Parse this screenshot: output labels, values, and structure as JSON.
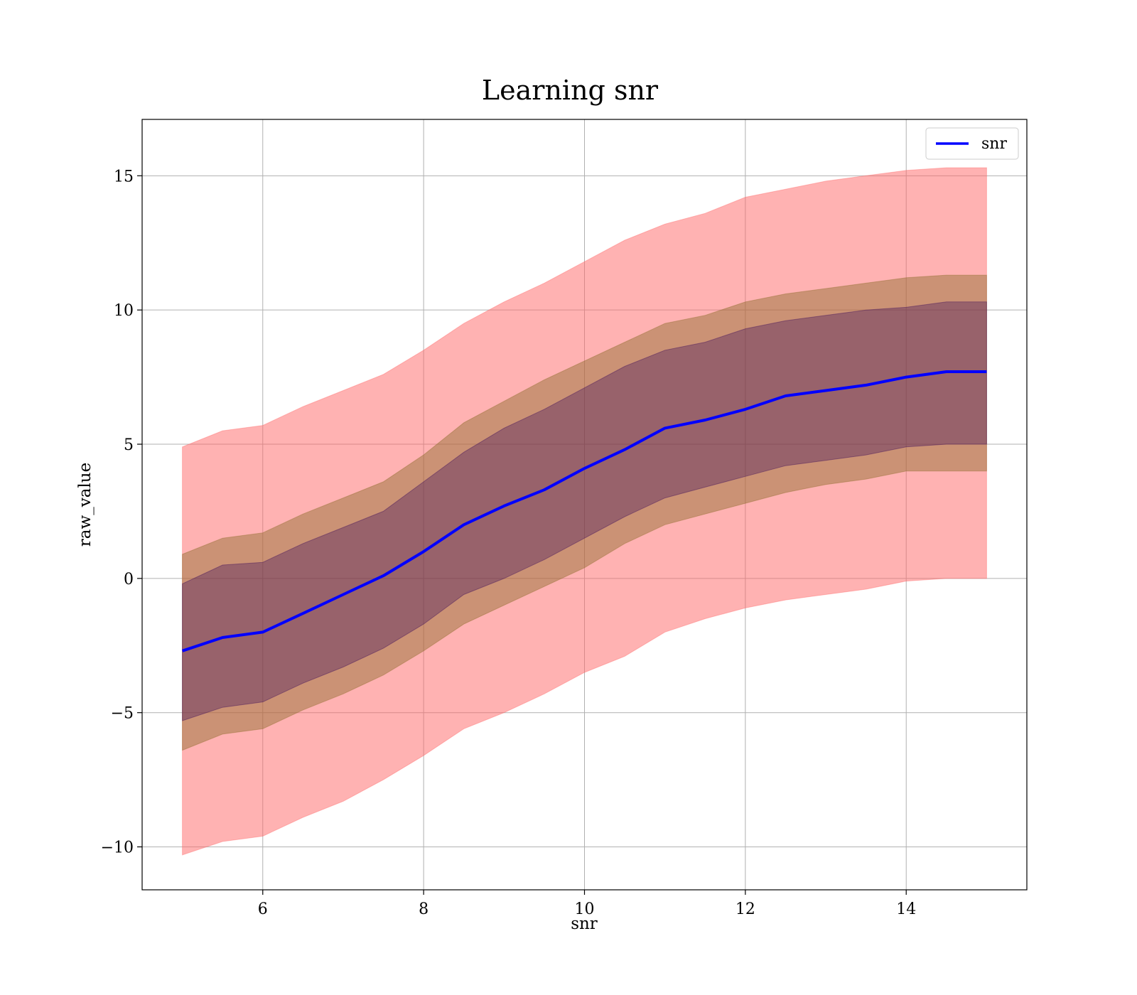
{
  "chart_data": {
    "type": "area",
    "title": "Learning snr",
    "xlabel": "snr",
    "ylabel": "raw_value",
    "xlim": [
      4.5,
      15.5
    ],
    "ylim": [
      -11.6,
      17.1
    ],
    "xticks": [
      6,
      8,
      10,
      12,
      14
    ],
    "yticks": [
      -10,
      -5,
      0,
      5,
      10,
      15
    ],
    "xtick_labels": [
      "6",
      "8",
      "10",
      "12",
      "14"
    ],
    "ytick_labels": [
      "−10",
      "−5",
      "0",
      "5",
      "10",
      "15"
    ],
    "grid": true,
    "legend_position": "top-right",
    "x": [
      5.0,
      5.5,
      6.0,
      6.5,
      7.0,
      7.5,
      8.0,
      8.5,
      9.0,
      9.5,
      10.0,
      10.5,
      11.0,
      11.5,
      12.0,
      12.5,
      13.0,
      13.5,
      14.0,
      14.5,
      15.0
    ],
    "series": [
      {
        "name": "snr",
        "color": "#0000ff",
        "values": [
          -2.7,
          -2.2,
          -2.0,
          -1.3,
          -0.6,
          0.1,
          1.0,
          2.0,
          2.7,
          3.3,
          4.1,
          4.8,
          5.6,
          5.9,
          6.3,
          6.8,
          7.0,
          7.2,
          7.5,
          7.7,
          7.7
        ]
      }
    ],
    "bands": [
      {
        "color": "#ff6666",
        "opacity": 0.5,
        "upper": [
          4.9,
          5.5,
          5.7,
          6.4,
          7.0,
          7.6,
          8.5,
          9.5,
          10.3,
          11.0,
          11.8,
          12.6,
          13.2,
          13.6,
          14.2,
          14.5,
          14.8,
          15.0,
          15.2,
          15.3,
          15.3
        ],
        "lower": [
          -10.3,
          -9.8,
          -9.6,
          -8.9,
          -8.3,
          -7.5,
          -6.6,
          -5.6,
          -5.0,
          -4.3,
          -3.5,
          -2.9,
          -2.0,
          -1.5,
          -1.1,
          -0.8,
          -0.6,
          -0.4,
          -0.1,
          0.0,
          0.0
        ]
      },
      {
        "color": "#8b6b2b",
        "opacity": 0.45,
        "upper": [
          0.9,
          1.5,
          1.7,
          2.4,
          3.0,
          3.6,
          4.6,
          5.8,
          6.6,
          7.4,
          8.1,
          8.8,
          9.5,
          9.8,
          10.3,
          10.6,
          10.8,
          11.0,
          11.2,
          11.3,
          11.3
        ],
        "lower": [
          -6.4,
          -5.8,
          -5.6,
          -4.9,
          -4.3,
          -3.6,
          -2.7,
          -1.7,
          -1.0,
          -0.3,
          0.4,
          1.3,
          2.0,
          2.4,
          2.8,
          3.2,
          3.5,
          3.7,
          4.0,
          4.0,
          4.0
        ]
      },
      {
        "color": "#3a0a5a",
        "opacity": 0.35,
        "upper": [
          -0.2,
          0.5,
          0.6,
          1.3,
          1.9,
          2.5,
          3.6,
          4.7,
          5.6,
          6.3,
          7.1,
          7.9,
          8.5,
          8.8,
          9.3,
          9.6,
          9.8,
          10.0,
          10.1,
          10.3,
          10.3
        ],
        "lower": [
          -5.3,
          -4.8,
          -4.6,
          -3.9,
          -3.3,
          -2.6,
          -1.7,
          -0.6,
          0.0,
          0.7,
          1.5,
          2.3,
          3.0,
          3.4,
          3.8,
          4.2,
          4.4,
          4.6,
          4.9,
          5.0,
          5.0
        ]
      }
    ]
  }
}
